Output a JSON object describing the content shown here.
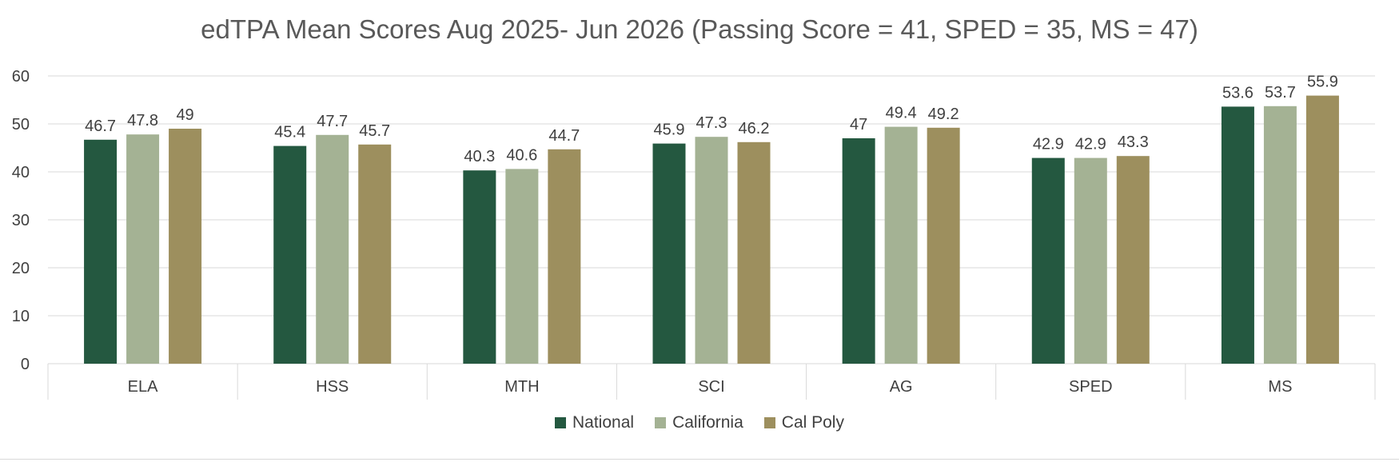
{
  "chart_data": {
    "type": "bar",
    "title": "edTPA Mean Scores Aug 2025- Jun 2026 (Passing Score = 41, SPED = 35, MS = 47)",
    "xlabel": "",
    "ylabel": "",
    "categories": [
      "ELA",
      "HSS",
      "MTH",
      "SCI",
      "AG",
      "SPED",
      "MS"
    ],
    "series": [
      {
        "name": "National",
        "color": "#245840",
        "values": [
          46.7,
          45.4,
          40.3,
          45.9,
          47,
          42.9,
          53.6
        ]
      },
      {
        "name": "California",
        "color": "#a4b294",
        "values": [
          47.8,
          47.7,
          40.6,
          47.3,
          49.4,
          42.9,
          53.7
        ]
      },
      {
        "name": "Cal Poly",
        "color": "#9d8f5e",
        "values": [
          49,
          45.7,
          44.7,
          46.2,
          49.2,
          43.3,
          55.9
        ]
      }
    ],
    "ylim": [
      0,
      60
    ],
    "yticks": [
      0,
      10,
      20,
      30,
      40,
      50,
      60
    ],
    "grid": true,
    "data_labels": true,
    "legend_position": "bottom"
  }
}
